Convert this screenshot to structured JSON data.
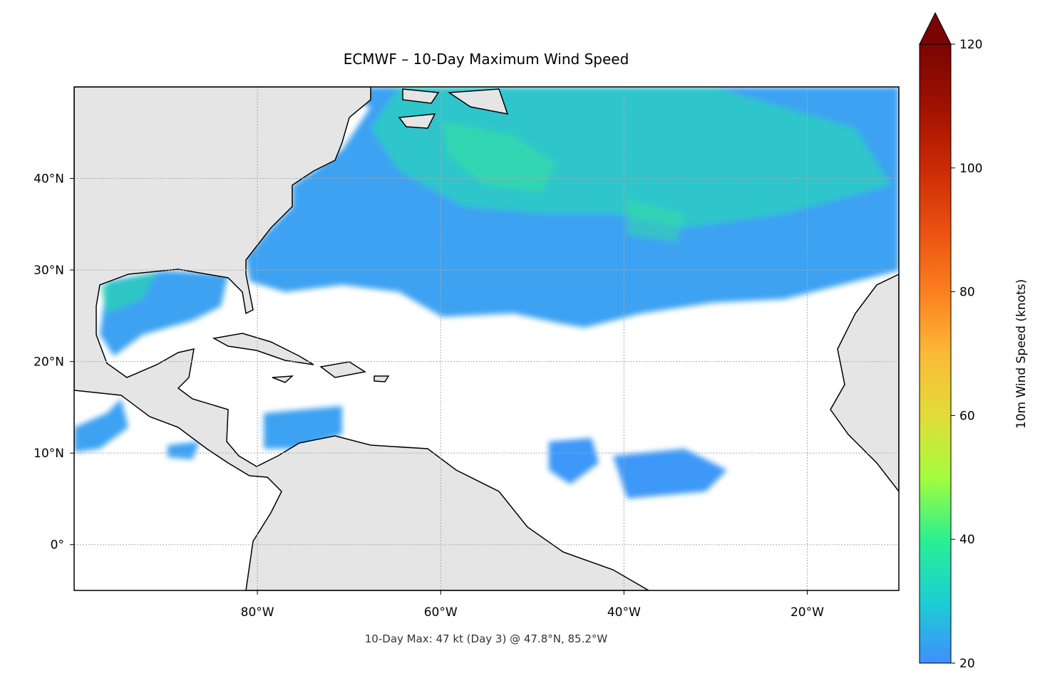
{
  "chart_data": {
    "type": "map",
    "title": "ECMWF – 10-Day Maximum Wind Speed",
    "annotation": "10-Day Max: 47 kt (Day 3) @ 47.8°N, 85.2°W",
    "xlim": [
      -100,
      -10
    ],
    "ylim": [
      -5,
      50
    ],
    "xticks": [
      {
        "value": -80,
        "label": "80°W"
      },
      {
        "value": -60,
        "label": "60°W"
      },
      {
        "value": -40,
        "label": "40°W"
      },
      {
        "value": -20,
        "label": "20°W"
      }
    ],
    "yticks": [
      {
        "value": 0,
        "label": "0°"
      },
      {
        "value": 10,
        "label": "10°N"
      },
      {
        "value": 20,
        "label": "20°N"
      },
      {
        "value": 30,
        "label": "30°N"
      },
      {
        "value": 40,
        "label": "40°N"
      }
    ],
    "grid": true,
    "colorbar": {
      "label": "10m Wind Speed (knots)",
      "lim": [
        20,
        120
      ],
      "ticks": [
        20,
        40,
        60,
        80,
        100,
        120
      ],
      "extend": "max",
      "colors": [
        "#3f8ffd",
        "#1ccfd3",
        "#2af08f",
        "#a4fc3c",
        "#e2dc38",
        "#fbb938",
        "#fb7f1f",
        "#eb5010",
        "#cb2a04",
        "#a01101",
        "#7a0403"
      ]
    }
  }
}
